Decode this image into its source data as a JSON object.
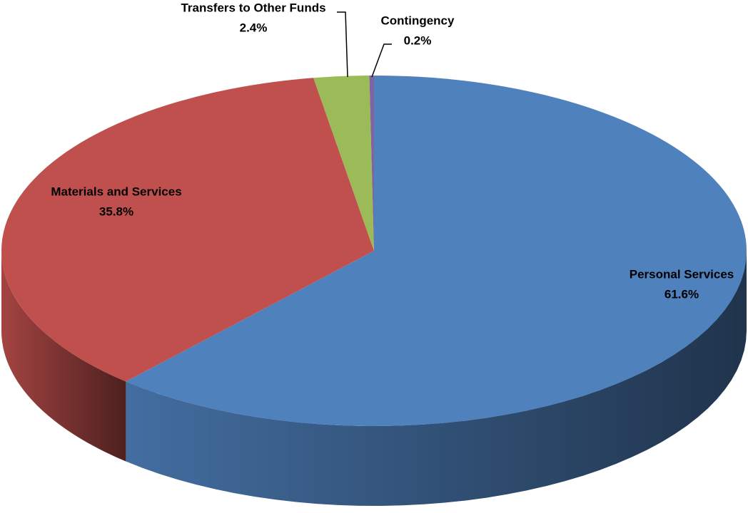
{
  "chart_data": {
    "type": "pie",
    "categories": [
      "Personal Services",
      "Materials and Services",
      "Transfers to Other Funds",
      "Contingency"
    ],
    "values": [
      61.6,
      35.8,
      2.4,
      0.2
    ],
    "value_labels": [
      "61.6%",
      "35.8%",
      "2.4%",
      "0.2%"
    ],
    "colors": [
      "#4f81bd",
      "#c0504d",
      "#9bbb59",
      "#8064a2"
    ]
  }
}
